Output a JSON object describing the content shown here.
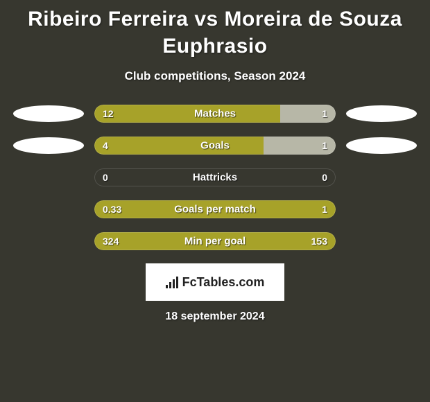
{
  "title": "Ribeiro Ferreira vs Moreira de Souza Euphrasio",
  "subtitle": "Club competitions, Season 2024",
  "date": "18 september 2024",
  "branding": "FcTables.com",
  "colors": {
    "left_bar": "#a7a229",
    "right_bar": "#b7b7a7",
    "background": "#37372f",
    "avatar": "#ffffff",
    "text": "#ffffff",
    "branding_bg": "#ffffff",
    "branding_text": "#222222"
  },
  "show_avatars_rows": [
    0,
    1
  ],
  "stats": [
    {
      "label": "Matches",
      "left_val": "12",
      "right_val": "1",
      "left_pct": 77,
      "right_pct": 23,
      "has_left": true,
      "has_right": true
    },
    {
      "label": "Goals",
      "left_val": "4",
      "right_val": "1",
      "left_pct": 70,
      "right_pct": 30,
      "has_left": true,
      "has_right": true
    },
    {
      "label": "Hattricks",
      "left_val": "0",
      "right_val": "0",
      "left_pct": 0,
      "right_pct": 0,
      "has_left": false,
      "has_right": false
    },
    {
      "label": "Goals per match",
      "left_val": "0.33",
      "right_val": "1",
      "left_pct": 100,
      "right_pct": 0,
      "has_left": true,
      "has_right": false
    },
    {
      "label": "Min per goal",
      "left_val": "324",
      "right_val": "153",
      "left_pct": 100,
      "right_pct": 0,
      "has_left": true,
      "has_right": false
    }
  ]
}
